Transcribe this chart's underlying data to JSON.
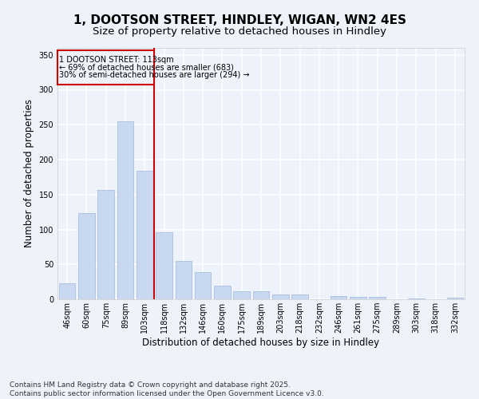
{
  "title": "1, DOOTSON STREET, HINDLEY, WIGAN, WN2 4ES",
  "subtitle": "Size of property relative to detached houses in Hindley",
  "xlabel": "Distribution of detached houses by size in Hindley",
  "ylabel": "Number of detached properties",
  "categories": [
    "46sqm",
    "60sqm",
    "75sqm",
    "89sqm",
    "103sqm",
    "118sqm",
    "132sqm",
    "146sqm",
    "160sqm",
    "175sqm",
    "189sqm",
    "203sqm",
    "218sqm",
    "232sqm",
    "246sqm",
    "261sqm",
    "275sqm",
    "289sqm",
    "303sqm",
    "318sqm",
    "332sqm"
  ],
  "values": [
    23,
    123,
    157,
    255,
    184,
    96,
    55,
    39,
    20,
    11,
    11,
    7,
    7,
    0,
    5,
    4,
    4,
    0,
    1,
    0,
    2
  ],
  "bar_color": "#c8d8f0",
  "bar_edge_color": "#a0b8d8",
  "background_color": "#eef2fb",
  "grid_color": "#ffffff",
  "vline_color": "#cc0000",
  "box_text_line1": "1 DOOTSON STREET: 113sqm",
  "box_text_line2": "← 69% of detached houses are smaller (683)",
  "box_text_line3": "30% of semi-detached houses are larger (294) →",
  "box_color": "#cc0000",
  "ylim": [
    0,
    360
  ],
  "yticks": [
    0,
    50,
    100,
    150,
    200,
    250,
    300,
    350
  ],
  "footer_line1": "Contains HM Land Registry data © Crown copyright and database right 2025.",
  "footer_line2": "Contains public sector information licensed under the Open Government Licence v3.0.",
  "title_fontsize": 11,
  "subtitle_fontsize": 9.5,
  "axis_label_fontsize": 8.5,
  "tick_fontsize": 7,
  "footer_fontsize": 6.5,
  "annotation_fontsize": 7
}
